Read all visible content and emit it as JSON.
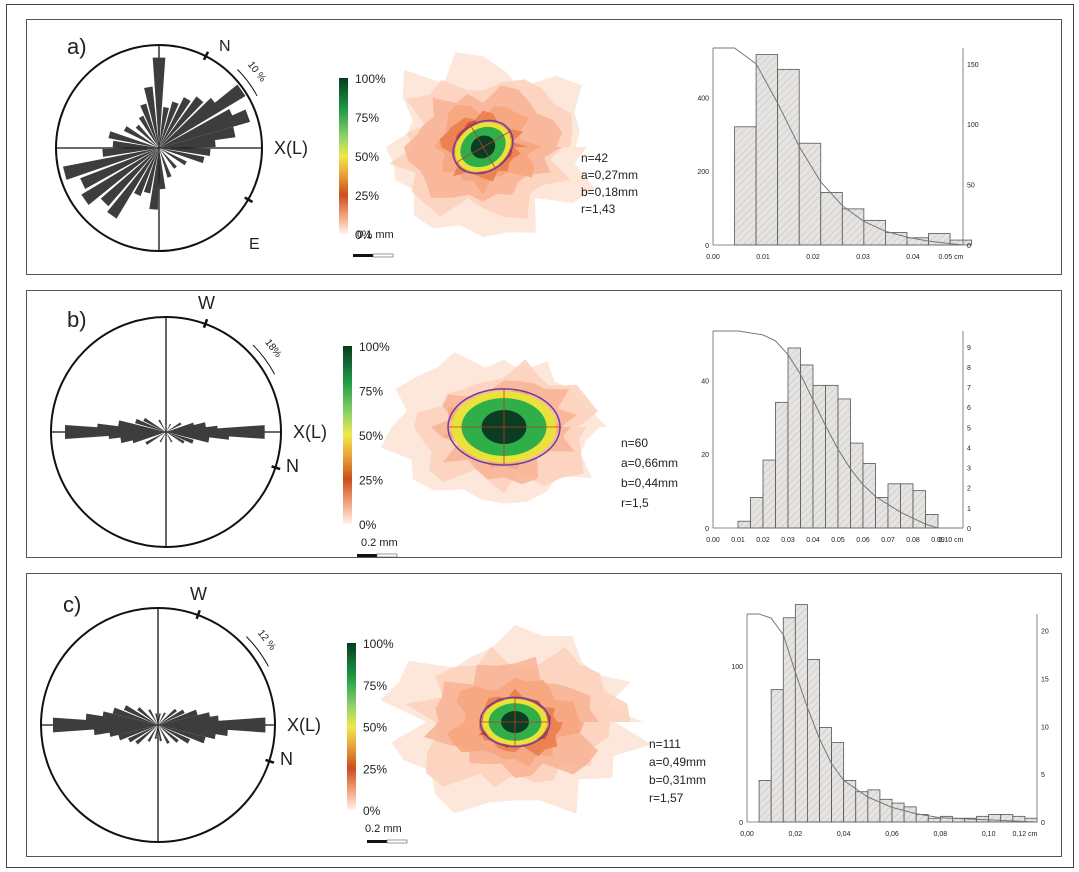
{
  "chart_data": [
    {
      "panel_label": "a)",
      "rose": {
        "type": "rose",
        "labels": {
          "n": "N",
          "e": "E",
          "x": "X(L)",
          "scale": "10 %"
        },
        "petals": [
          {
            "az": 70,
            "len": 0.92
          },
          {
            "az": 65,
            "len": 0.78
          },
          {
            "az": 55,
            "len": 0.98
          },
          {
            "az": 50,
            "len": 0.7
          },
          {
            "az": 40,
            "len": 0.62
          },
          {
            "az": 30,
            "len": 0.55
          },
          {
            "az": 20,
            "len": 0.47
          },
          {
            "az": 10,
            "len": 0.4
          },
          {
            "az": 0,
            "len": 0.88
          },
          {
            "az": 350,
            "len": 0.6
          },
          {
            "az": 340,
            "len": 0.45
          },
          {
            "az": 330,
            "len": 0.35
          },
          {
            "az": 315,
            "len": 0.3
          },
          {
            "az": 300,
            "len": 0.38
          },
          {
            "az": 285,
            "len": 0.5
          },
          {
            "az": 275,
            "len": 0.45
          },
          {
            "az": 265,
            "len": 0.55
          },
          {
            "az": 255,
            "len": 0.95
          },
          {
            "az": 245,
            "len": 0.82
          },
          {
            "az": 235,
            "len": 0.88
          },
          {
            "az": 225,
            "len": 0.75
          },
          {
            "az": 215,
            "len": 0.8
          },
          {
            "az": 205,
            "len": 0.5
          },
          {
            "az": 195,
            "len": 0.45
          },
          {
            "az": 185,
            "len": 0.6
          },
          {
            "az": 175,
            "len": 0.4
          },
          {
            "az": 160,
            "len": 0.3
          },
          {
            "az": 140,
            "len": 0.25
          },
          {
            "az": 120,
            "len": 0.3
          },
          {
            "az": 105,
            "len": 0.45
          },
          {
            "az": 95,
            "len": 0.5
          },
          {
            "az": 85,
            "len": 0.55
          },
          {
            "az": 78,
            "len": 0.75
          }
        ]
      },
      "legend": {
        "ticks": [
          "100%",
          "75%",
          "50%",
          "25%",
          "0%"
        ],
        "scalebar": "0.1 mm"
      },
      "stats": [
        "n=42",
        "a=0,27mm",
        "b=0,18mm",
        "r=1,43"
      ],
      "histogram": {
        "type": "bar",
        "x_ticks": [
          "0.00",
          "0.01",
          "0.02",
          "0.03",
          "0.04",
          "0.05 cm"
        ],
        "left_ticks": [
          "0",
          "200",
          "400"
        ],
        "right_ticks": [
          "0",
          "50",
          "100",
          "150"
        ],
        "xlim": [
          0,
          0.058
        ],
        "ylim": [
          0,
          600
        ],
        "bin_width": 0.005,
        "bins": [
          {
            "x": 0.005,
            "count": 360
          },
          {
            "x": 0.01,
            "count": 580
          },
          {
            "x": 0.015,
            "count": 535
          },
          {
            "x": 0.02,
            "count": 310
          },
          {
            "x": 0.025,
            "count": 160
          },
          {
            "x": 0.03,
            "count": 110
          },
          {
            "x": 0.035,
            "count": 75
          },
          {
            "x": 0.04,
            "count": 38
          },
          {
            "x": 0.045,
            "count": 22
          },
          {
            "x": 0.05,
            "count": 35
          },
          {
            "x": 0.055,
            "count": 15
          }
        ],
        "cumulative": [
          [
            0.0,
            1.0
          ],
          [
            0.005,
            1.0
          ],
          [
            0.01,
            0.92
          ],
          [
            0.015,
            0.72
          ],
          [
            0.02,
            0.5
          ],
          [
            0.025,
            0.32
          ],
          [
            0.03,
            0.2
          ],
          [
            0.035,
            0.12
          ],
          [
            0.04,
            0.07
          ],
          [
            0.045,
            0.04
          ],
          [
            0.05,
            0.02
          ],
          [
            0.058,
            0.0
          ]
        ]
      }
    },
    {
      "panel_label": "b)",
      "rose": {
        "type": "rose",
        "labels": {
          "n": "N",
          "w": "W",
          "x": "X(L)",
          "scale": "18%"
        },
        "petals": [
          {
            "az": 90,
            "len": 0.86
          },
          {
            "az": 93,
            "len": 0.55
          },
          {
            "az": 87,
            "len": 0.45
          },
          {
            "az": 80,
            "len": 0.35
          },
          {
            "az": 100,
            "len": 0.38
          },
          {
            "az": 75,
            "len": 0.25
          },
          {
            "az": 110,
            "len": 0.25
          },
          {
            "az": 60,
            "len": 0.15
          },
          {
            "az": 120,
            "len": 0.18
          },
          {
            "az": 30,
            "len": 0.08
          },
          {
            "az": 150,
            "len": 0.1
          },
          {
            "az": 0,
            "len": 0.06
          },
          {
            "az": 270,
            "len": 0.88
          },
          {
            "az": 273,
            "len": 0.6
          },
          {
            "az": 267,
            "len": 0.5
          },
          {
            "az": 260,
            "len": 0.4
          },
          {
            "az": 280,
            "len": 0.42
          },
          {
            "az": 255,
            "len": 0.3
          },
          {
            "az": 290,
            "len": 0.28
          },
          {
            "az": 240,
            "len": 0.2
          },
          {
            "az": 300,
            "len": 0.22
          },
          {
            "az": 210,
            "len": 0.1
          },
          {
            "az": 330,
            "len": 0.12
          },
          {
            "az": 180,
            "len": 0.06
          }
        ]
      },
      "legend": {
        "ticks": [
          "100%",
          "75%",
          "50%",
          "25%",
          "0%"
        ],
        "scalebar": "0.2 mm"
      },
      "stats": [
        "n=60",
        "a=0,66mm",
        "b=0,44mm",
        "r=1,5"
      ],
      "histogram": {
        "type": "bar",
        "x_ticks": [
          "0.00",
          "0.01",
          "0.02",
          "0.03",
          "0.04",
          "0.05",
          "0.06",
          "0.07",
          "0.08",
          "0.09",
          "0.10 cm"
        ],
        "left_ticks": [
          "0",
          "20",
          "40"
        ],
        "right_ticks": [
          "0",
          "1",
          "2",
          "3",
          "4",
          "5",
          "6",
          "7",
          "8",
          "9"
        ],
        "xlim": [
          0,
          0.1
        ],
        "ylim": [
          0,
          58
        ],
        "bin_width": 0.005,
        "bins": [
          {
            "x": 0.01,
            "count": 2
          },
          {
            "x": 0.015,
            "count": 9
          },
          {
            "x": 0.02,
            "count": 20
          },
          {
            "x": 0.025,
            "count": 37
          },
          {
            "x": 0.03,
            "count": 53
          },
          {
            "x": 0.035,
            "count": 48
          },
          {
            "x": 0.04,
            "count": 42
          },
          {
            "x": 0.045,
            "count": 42
          },
          {
            "x": 0.05,
            "count": 38
          },
          {
            "x": 0.055,
            "count": 25
          },
          {
            "x": 0.06,
            "count": 19
          },
          {
            "x": 0.065,
            "count": 9
          },
          {
            "x": 0.07,
            "count": 13
          },
          {
            "x": 0.075,
            "count": 13
          },
          {
            "x": 0.08,
            "count": 11
          },
          {
            "x": 0.085,
            "count": 4
          }
        ],
        "cumulative": [
          [
            0.0,
            1.0
          ],
          [
            0.01,
            1.0
          ],
          [
            0.02,
            0.98
          ],
          [
            0.025,
            0.95
          ],
          [
            0.03,
            0.88
          ],
          [
            0.035,
            0.78
          ],
          [
            0.04,
            0.65
          ],
          [
            0.045,
            0.52
          ],
          [
            0.05,
            0.4
          ],
          [
            0.055,
            0.3
          ],
          [
            0.06,
            0.22
          ],
          [
            0.065,
            0.16
          ],
          [
            0.07,
            0.12
          ],
          [
            0.075,
            0.08
          ],
          [
            0.08,
            0.05
          ],
          [
            0.085,
            0.02
          ],
          [
            0.09,
            0.0
          ],
          [
            0.1,
            0.0
          ]
        ]
      }
    },
    {
      "panel_label": "c)",
      "rose": {
        "type": "rose",
        "labels": {
          "n": "N",
          "w": "W",
          "x": "X(L)",
          "scale": "12 %"
        },
        "petals": [
          {
            "az": 90,
            "len": 0.92
          },
          {
            "az": 95,
            "len": 0.6
          },
          {
            "az": 85,
            "len": 0.52
          },
          {
            "az": 80,
            "len": 0.45
          },
          {
            "az": 100,
            "len": 0.5
          },
          {
            "az": 72,
            "len": 0.35
          },
          {
            "az": 108,
            "len": 0.42
          },
          {
            "az": 62,
            "len": 0.25
          },
          {
            "az": 118,
            "len": 0.3
          },
          {
            "az": 50,
            "len": 0.2
          },
          {
            "az": 130,
            "len": 0.22
          },
          {
            "az": 30,
            "len": 0.12
          },
          {
            "az": 150,
            "len": 0.18
          },
          {
            "az": 10,
            "len": 0.1
          },
          {
            "az": 170,
            "len": 0.14
          },
          {
            "az": 270,
            "len": 0.9
          },
          {
            "az": 275,
            "len": 0.62
          },
          {
            "az": 265,
            "len": 0.55
          },
          {
            "az": 260,
            "len": 0.42
          },
          {
            "az": 280,
            "len": 0.48
          },
          {
            "az": 252,
            "len": 0.35
          },
          {
            "az": 288,
            "len": 0.4
          },
          {
            "az": 242,
            "len": 0.28
          },
          {
            "az": 298,
            "len": 0.32
          },
          {
            "az": 230,
            "len": 0.24
          },
          {
            "az": 310,
            "len": 0.22
          },
          {
            "az": 210,
            "len": 0.16
          },
          {
            "az": 330,
            "len": 0.15
          },
          {
            "az": 190,
            "len": 0.12
          },
          {
            "az": 350,
            "len": 0.1
          }
        ]
      },
      "legend": {
        "ticks": [
          "100%",
          "75%",
          "50%",
          "25%",
          "0%"
        ],
        "scalebar": "0.2 mm"
      },
      "stats": [
        "n=111",
        "a=0,49mm",
        "b=0,31mm",
        "r=1,57"
      ],
      "histogram": {
        "type": "bar",
        "x_ticks": [
          "0,00",
          "0,02",
          "0,04",
          "0,06",
          "0,08",
          "0,10",
          "0,12 cm"
        ],
        "left_ticks": [
          "0",
          "100"
        ],
        "right_ticks": [
          "0",
          "5",
          "10",
          "15",
          "20"
        ],
        "xlim": [
          0,
          0.12
        ],
        "ylim": [
          0,
          110
        ],
        "bin_width": 0.005,
        "bins": [
          {
            "x": 0.005,
            "count": 22
          },
          {
            "x": 0.01,
            "count": 70
          },
          {
            "x": 0.015,
            "count": 108
          },
          {
            "x": 0.02,
            "count": 115
          },
          {
            "x": 0.025,
            "count": 86
          },
          {
            "x": 0.03,
            "count": 50
          },
          {
            "x": 0.035,
            "count": 42
          },
          {
            "x": 0.04,
            "count": 22
          },
          {
            "x": 0.045,
            "count": 16
          },
          {
            "x": 0.05,
            "count": 17
          },
          {
            "x": 0.055,
            "count": 12
          },
          {
            "x": 0.06,
            "count": 10
          },
          {
            "x": 0.065,
            "count": 8
          },
          {
            "x": 0.07,
            "count": 4
          },
          {
            "x": 0.075,
            "count": 2
          },
          {
            "x": 0.08,
            "count": 3
          },
          {
            "x": 0.085,
            "count": 2
          },
          {
            "x": 0.09,
            "count": 2
          },
          {
            "x": 0.095,
            "count": 3
          },
          {
            "x": 0.1,
            "count": 4
          },
          {
            "x": 0.105,
            "count": 4
          },
          {
            "x": 0.11,
            "count": 3
          },
          {
            "x": 0.115,
            "count": 2
          }
        ],
        "cumulative": [
          [
            0.0,
            1.0
          ],
          [
            0.005,
            1.0
          ],
          [
            0.01,
            0.98
          ],
          [
            0.015,
            0.9
          ],
          [
            0.02,
            0.72
          ],
          [
            0.025,
            0.55
          ],
          [
            0.03,
            0.4
          ],
          [
            0.035,
            0.28
          ],
          [
            0.04,
            0.2
          ],
          [
            0.05,
            0.12
          ],
          [
            0.06,
            0.07
          ],
          [
            0.07,
            0.04
          ],
          [
            0.08,
            0.02
          ],
          [
            0.1,
            0.01
          ],
          [
            0.12,
            0.0
          ]
        ]
      }
    }
  ],
  "colors": {
    "petal": "#3d3d3d",
    "bar_fill": "#e6e4e2",
    "bar_stroke": "#555555",
    "density_outer": "#fde3d6",
    "density_mid": "#f7a47c",
    "density_inner": "#d9481a",
    "core_yellow": "#e8e23a",
    "core_green": "#2fae4a",
    "core_dark": "#0a3d22",
    "ellipse": "#6a3fa0"
  }
}
